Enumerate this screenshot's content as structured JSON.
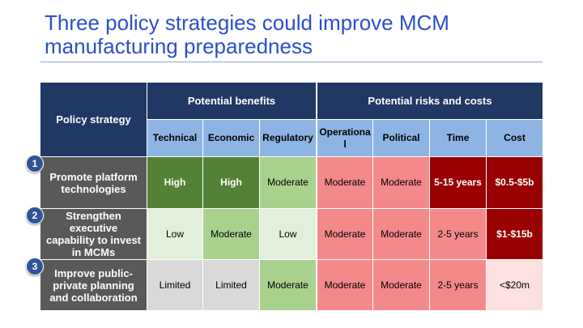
{
  "title": "Three policy strategies could improve MCM manufacturing preparedness",
  "header": {
    "policy": "Policy strategy",
    "benefits": "Potential benefits",
    "risks": "Potential risks and costs",
    "columns": [
      "Technical",
      "Economic",
      "Regulatory",
      "Operationa l",
      "Political",
      "Time",
      "Cost"
    ]
  },
  "rows": [
    {
      "num": "1",
      "label": "Promote platform technologies",
      "cells": [
        "High",
        "High",
        "Moderate",
        "Moderate",
        "Moderate",
        "5-15 years",
        "$0.5-$5b"
      ]
    },
    {
      "num": "2",
      "label": "Strengthen executive capability to invest in MCMs",
      "cells": [
        "Low",
        "Moderate",
        "Low",
        "Moderate",
        "Moderate",
        "2-5 years",
        "$1-$15b"
      ]
    },
    {
      "num": "3",
      "label": "Improve public-private planning and collaboration",
      "cells": [
        "Limited",
        "Limited",
        "Moderate",
        "Moderate",
        "Moderate",
        "2-5 years",
        "<$20m"
      ]
    }
  ],
  "colors": {
    "high": "#538135",
    "moderate_benefit": "#a9d18e",
    "low": "#e2efda",
    "limited": "#d9d9d9",
    "risk_moderate": "#f4898a",
    "risk_high": "#990000",
    "risk_low": "#fde0e0"
  }
}
